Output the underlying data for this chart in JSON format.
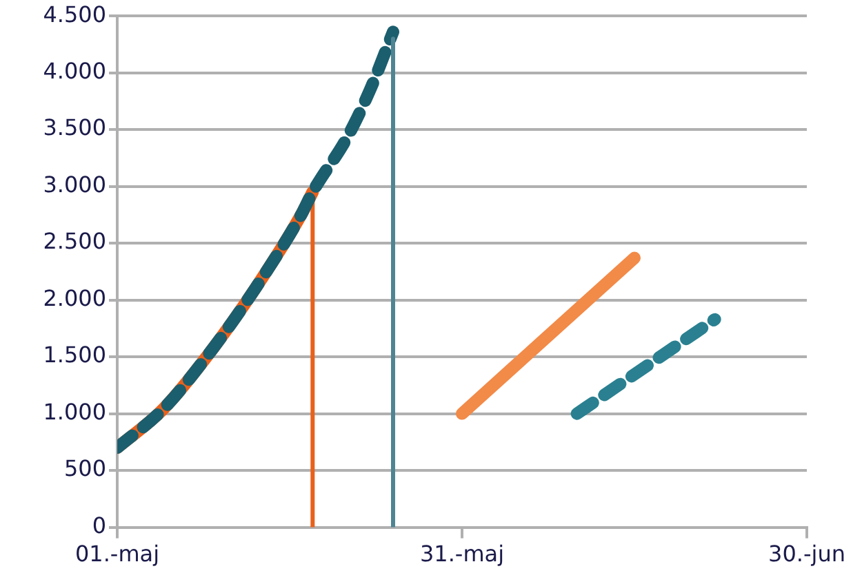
{
  "chart_data": {
    "type": "line",
    "grid": "y",
    "legend": false,
    "marker": "none",
    "xlim": [
      "--05-01",
      "--06-30"
    ],
    "xticks": [
      {
        "value": "--05-01",
        "label": "01.-maj"
      },
      {
        "value": "--05-31",
        "label": "31.-maj"
      },
      {
        "value": "--06-30",
        "label": "30.-jun"
      }
    ],
    "ylim": [
      0,
      4500
    ],
    "yticks": [
      0,
      500,
      {
        "value": 1000,
        "label": "1.000"
      },
      {
        "value": 1500,
        "label": "1.500"
      },
      {
        "value": 2000,
        "label": "2.000"
      },
      {
        "value": 2500,
        "label": "2.500"
      },
      {
        "value": 3000,
        "label": "3.000"
      },
      {
        "value": 3500,
        "label": "3.500"
      },
      {
        "value": 4000,
        "label": "4.000"
      },
      {
        "value": 4500,
        "label": "4.500"
      }
    ],
    "series": [
      {
        "color": "#e8611c",
        "line_style": "solid",
        "x": [
          "--05-01",
          "--05-05",
          "--05-09",
          "--05-13",
          "--05-17",
          "--05-18"
        ],
        "values": [
          700,
          1040,
          1530,
          2100,
          2750,
          2950
        ]
      },
      {
        "color": "#e8611c",
        "line_style": "solid",
        "x": [
          "--05-18",
          "--05-18"
        ],
        "values": [
          0,
          2950
        ]
      },
      {
        "color": "#1b5e6e",
        "line_style": "dashed",
        "x": [
          "--05-01",
          "--05-05",
          "--05-09",
          "--05-13",
          "--05-17",
          "--05-18",
          "--05-21",
          "--05-23",
          "--05-25"
        ],
        "values": [
          700,
          1040,
          1530,
          2100,
          2750,
          2950,
          3430,
          3850,
          4360
        ]
      },
      {
        "color": "#4f8593",
        "line_style": "solid",
        "x": [
          "--05-25",
          "--05-25"
        ],
        "values": [
          0,
          4300
        ]
      },
      {
        "color": "#f28a48",
        "line_style": "solid",
        "x": [
          "--05-31",
          "--06-15"
        ],
        "values": [
          1000,
          2370
        ]
      },
      {
        "color": "#2a8090",
        "line_style": "dashed",
        "x": [
          "--06-10",
          "--06-22"
        ],
        "values": [
          1000,
          1830
        ]
      }
    ]
  }
}
